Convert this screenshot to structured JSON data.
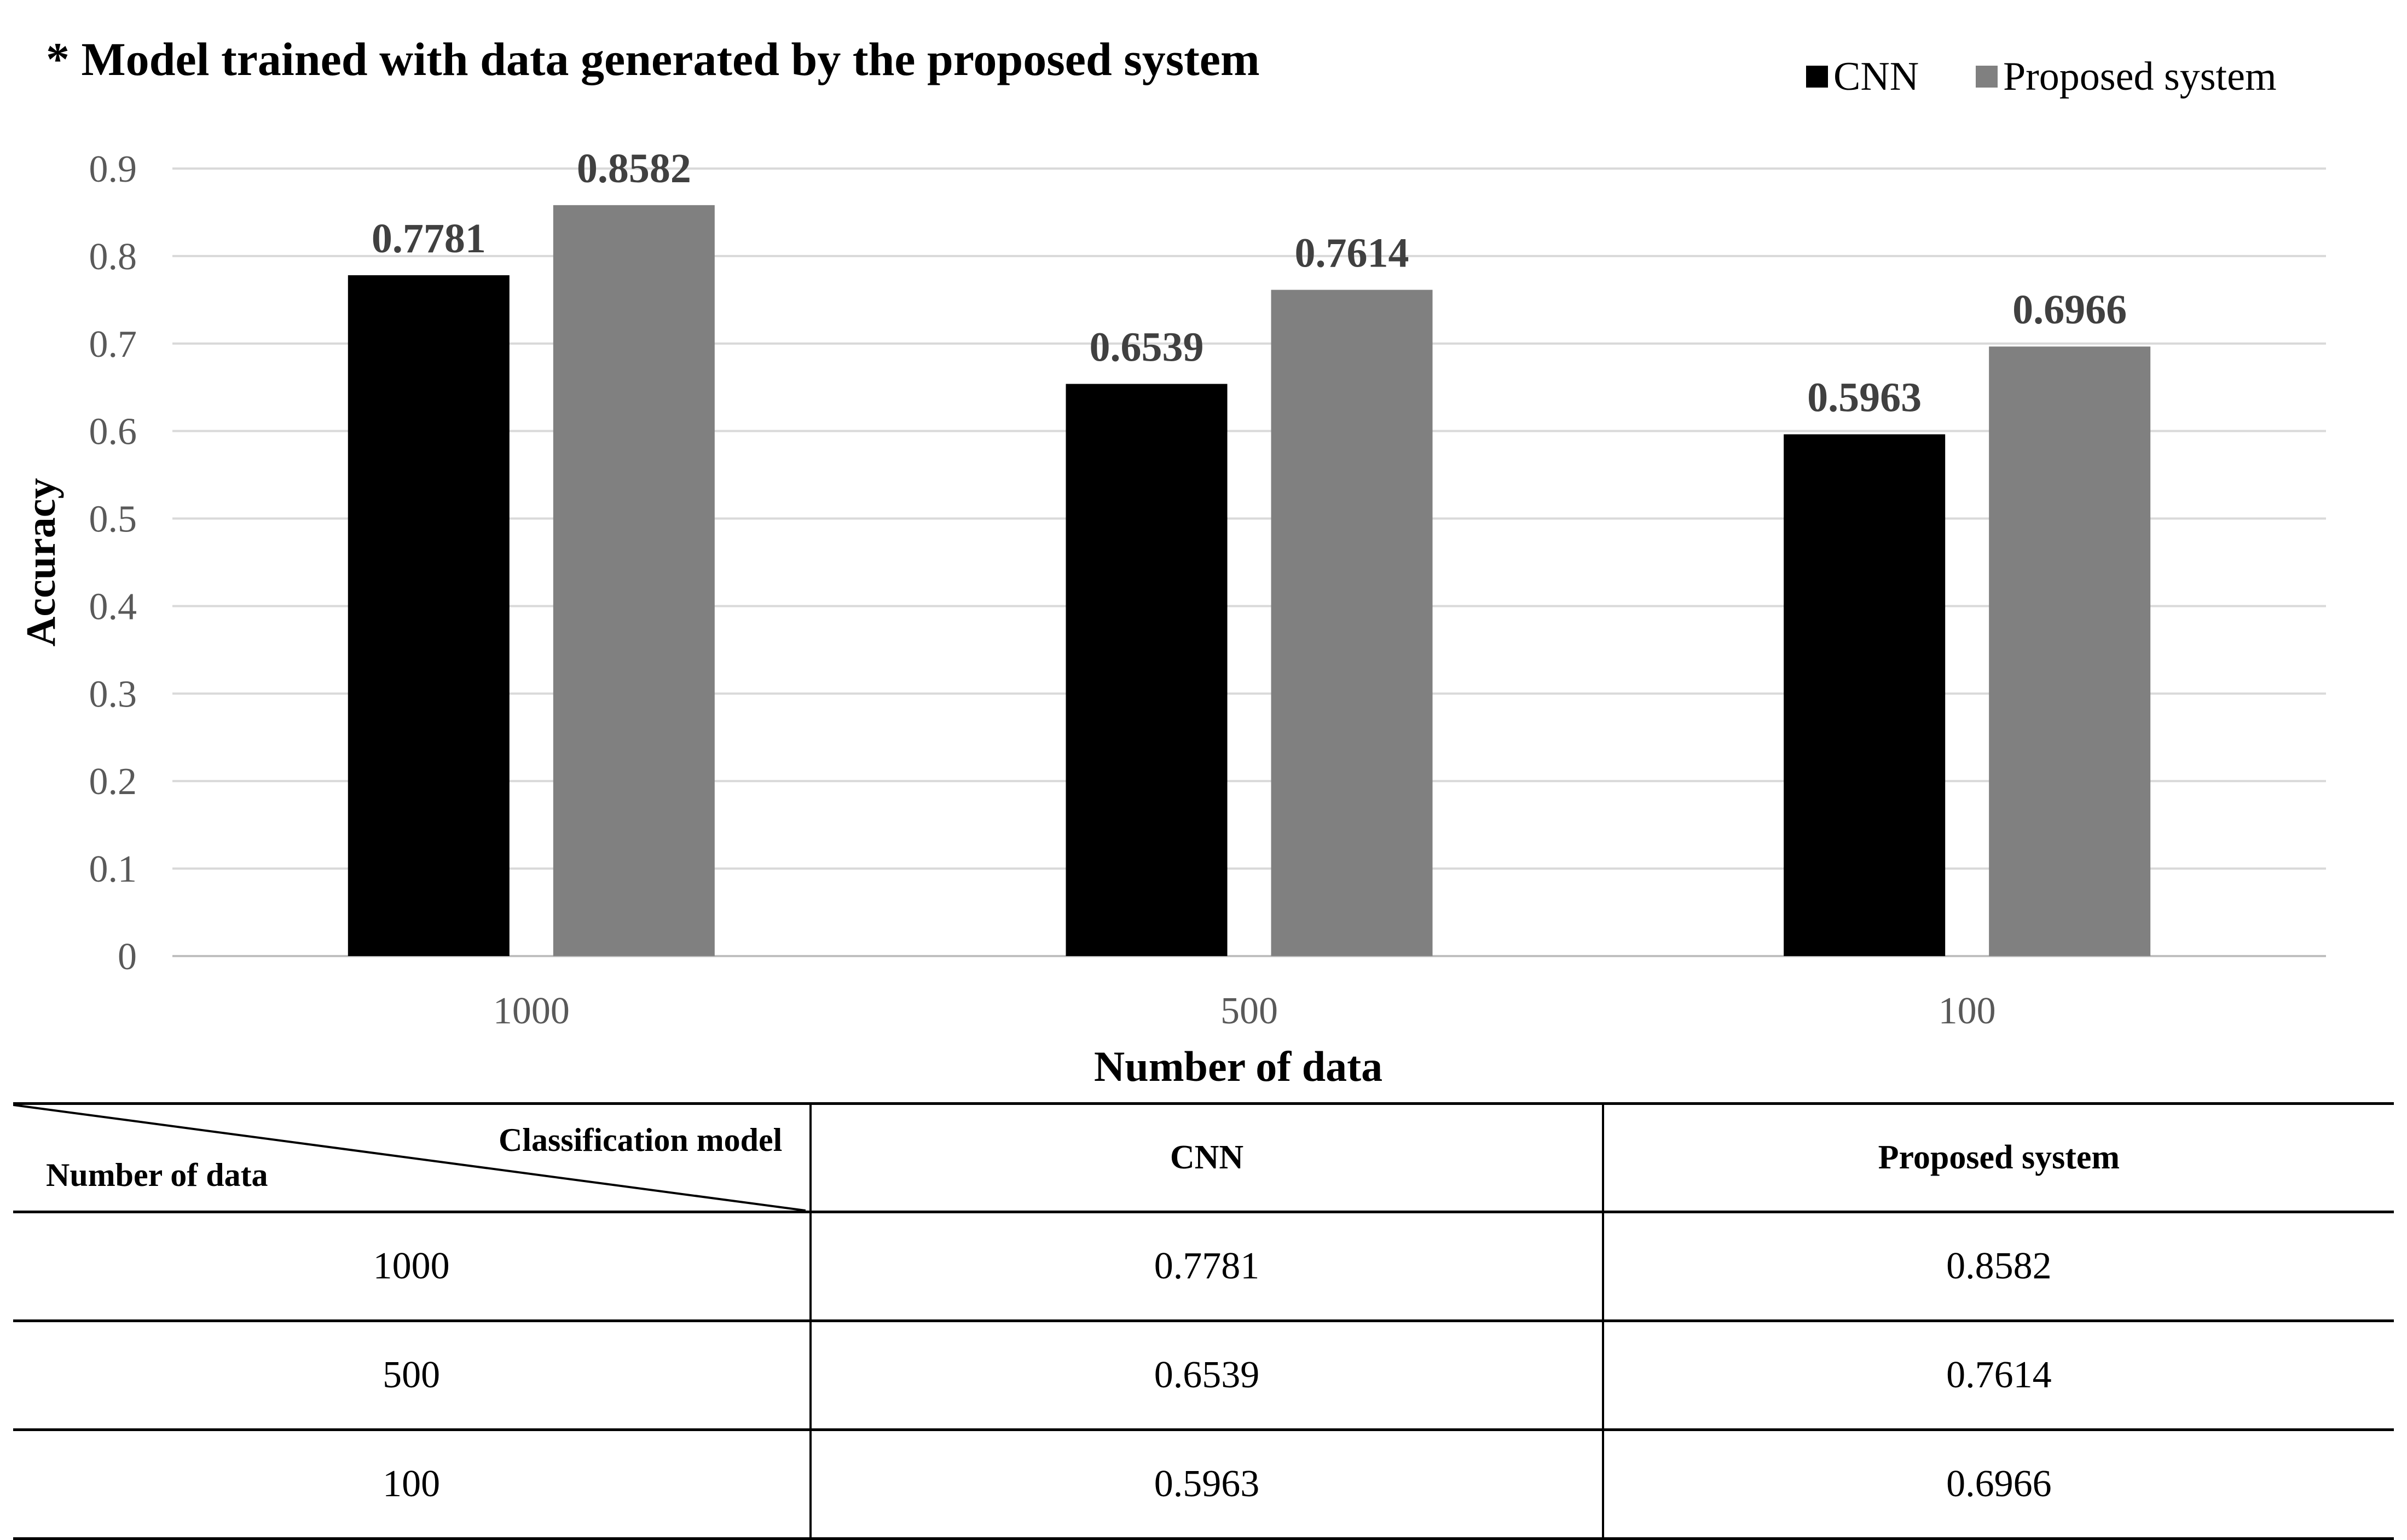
{
  "chart_data": {
    "type": "bar",
    "title": "* Model trained with data generated by the proposed system",
    "xlabel": "Number  of data",
    "ylabel": "Accuracy",
    "categories": [
      "1000",
      "500",
      "100"
    ],
    "series": [
      {
        "name": "CNN",
        "color": "#000000",
        "values": [
          0.7781,
          0.6539,
          0.5963
        ],
        "labels": [
          "0.7781",
          "0.6539",
          "0.5963"
        ]
      },
      {
        "name": "Proposed system",
        "color": "#808080",
        "values": [
          0.8582,
          0.7614,
          0.6966
        ],
        "labels": [
          "0.8582",
          "0.7614",
          "0.6966"
        ]
      }
    ],
    "ylim": [
      0,
      0.9
    ],
    "yticks": [
      "0",
      "0.1",
      "0.2",
      "0.3",
      "0.4",
      "0.5",
      "0.6",
      "0.7",
      "0.8",
      "0.9"
    ],
    "grid": true,
    "legend": "top-right"
  },
  "table": {
    "corner_top": "Classification model",
    "corner_bottom": "Number of data",
    "headers": [
      "CNN",
      "Proposed system"
    ],
    "rows": [
      [
        "1000",
        "0.7781",
        "0.8582"
      ],
      [
        "500",
        "0.6539",
        "0.7614"
      ],
      [
        "100",
        "0.5963",
        "0.6966"
      ]
    ]
  }
}
